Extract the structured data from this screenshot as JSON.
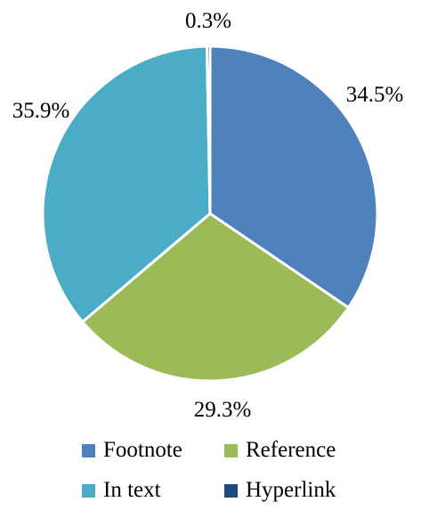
{
  "chart_data": {
    "type": "pie",
    "slices": [
      {
        "label": "Footnote",
        "value": 34.5,
        "display": "34.5%",
        "color": "#4F81BD"
      },
      {
        "label": "Reference",
        "value": 29.3,
        "display": "29.3%",
        "color": "#9BBB59"
      },
      {
        "label": "In text",
        "value": 35.9,
        "display": "35.9%",
        "color": "#4BACC6"
      },
      {
        "label": "Hyperlink",
        "value": 0.3,
        "display": "0.3%",
        "color": "#1F497D"
      }
    ],
    "legend_position": "bottom"
  }
}
